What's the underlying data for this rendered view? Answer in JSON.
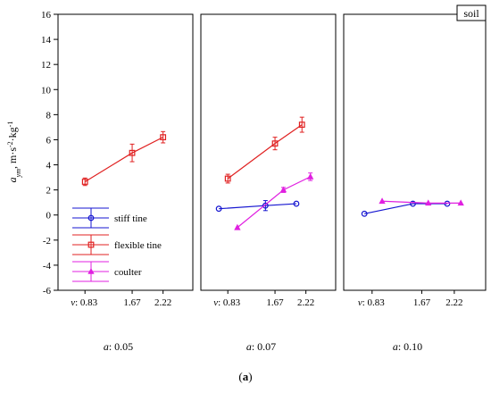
{
  "chart_data": {
    "type": "line",
    "ylabel_main": "a",
    "ylabel_sub": "ym",
    "ylabel_unit_parts": [
      ", m·s",
      "-2",
      "·kg",
      "-1"
    ],
    "ylim": [
      -6,
      16
    ],
    "yticks": [
      -6,
      -4,
      -2,
      0,
      2,
      4,
      6,
      8,
      10,
      12,
      14,
      16
    ],
    "legend_placement": "bottom-left",
    "legend_title": "soil",
    "panels": [
      {
        "panel_label": "a: 0.05",
        "xtick_labels": [
          "v: 0.83",
          "1.67",
          "2.22"
        ],
        "series": [
          {
            "name": "flexible tine",
            "x": [
              0.83,
              1.67,
              2.22
            ],
            "y": [
              2.65,
              4.95,
              6.2
            ],
            "err": [
              0.3,
              0.7,
              0.45
            ]
          }
        ]
      },
      {
        "panel_label": "a: 0.07",
        "xtick_labels": [
          "v: 0.83",
          "1.67",
          "2.22"
        ],
        "series": [
          {
            "name": "stiff tine",
            "x": [
              0.67,
              1.5,
              2.05
            ],
            "y": [
              0.5,
              0.75,
              0.9
            ],
            "err": [
              0.0,
              0.4,
              0.0
            ]
          },
          {
            "name": "flexible tine",
            "x": [
              0.83,
              1.67,
              2.15
            ],
            "y": [
              2.9,
              5.7,
              7.2
            ],
            "err": [
              0.35,
              0.5,
              0.6
            ]
          },
          {
            "name": "coulter",
            "x": [
              1.0,
              1.82,
              2.3
            ],
            "y": [
              -1.0,
              2.0,
              3.05
            ],
            "err": [
              0.0,
              0.2,
              0.3
            ]
          }
        ]
      },
      {
        "panel_label": "a: 0.10",
        "xtick_labels": [
          "v: 0.83",
          "1.67",
          "2.22"
        ],
        "series": [
          {
            "name": "stiff tine",
            "x": [
              0.7,
              1.52,
              2.1
            ],
            "y": [
              0.1,
              0.9,
              0.9
            ],
            "err": [
              0,
              0,
              0
            ]
          },
          {
            "name": "coulter",
            "x": [
              1.0,
              1.78,
              2.33
            ],
            "y": [
              1.1,
              0.95,
              0.95
            ],
            "err": [
              0,
              0,
              0
            ]
          }
        ]
      }
    ],
    "series_styles": {
      "stiff tine": {
        "color": "#1515d0",
        "marker": "circle"
      },
      "flexible tine": {
        "color": "#e02020",
        "marker": "square"
      },
      "coulter": {
        "color": "#e020e0",
        "marker": "triangle"
      }
    },
    "legend": [
      {
        "name": "stiff tine",
        "marker": "circle",
        "color": "#1515d0"
      },
      {
        "name": "flexible tine",
        "marker": "square",
        "color": "#e02020"
      },
      {
        "name": "coulter",
        "marker": "triangle",
        "color": "#e020e0"
      }
    ]
  },
  "figure_label": {
    "open": "(",
    "letter": "a",
    "close": ")"
  }
}
